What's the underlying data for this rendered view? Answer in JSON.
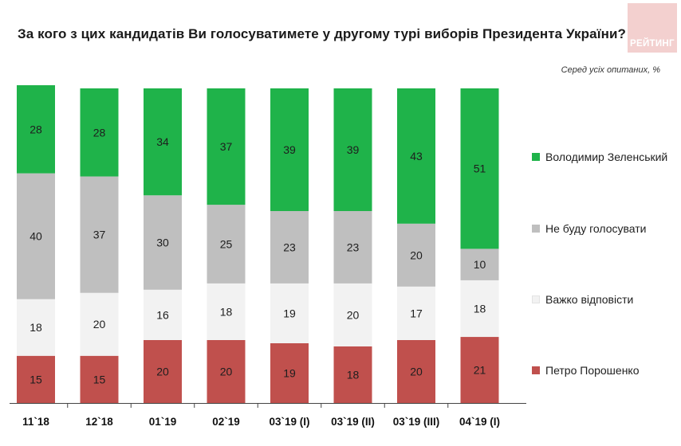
{
  "title": "За кого з цих кандидатів Ви голосуватимете у другому турі виборів Президента України?",
  "subtitle": "Серед усіх опитаних, %",
  "logo_text": "РЕЙТИНГ",
  "chart_data": {
    "type": "bar",
    "stacked": true,
    "categories": [
      "11`18",
      "12`18",
      "01`19",
      "02`19",
      "03`19 (I)",
      "03`19 (II)",
      "03`19 (III)",
      "04`19 (I)"
    ],
    "series": [
      {
        "name": "Петро Порошенко",
        "color": "#c0504d",
        "values": [
          15,
          15,
          20,
          20,
          19,
          18,
          20,
          21
        ]
      },
      {
        "name": "Важко відповісти",
        "color": "#f2f2f2",
        "values": [
          18,
          20,
          16,
          18,
          19,
          20,
          17,
          18
        ]
      },
      {
        "name": "Не буду голосувати",
        "color": "#bfbfbf",
        "values": [
          40,
          37,
          30,
          25,
          23,
          23,
          20,
          10
        ]
      },
      {
        "name": "Володимир Зеленський",
        "color": "#1fb34a",
        "values": [
          28,
          28,
          34,
          37,
          39,
          39,
          43,
          51
        ]
      }
    ],
    "legend": {
      "position": "right",
      "order": [
        "Володимир Зеленський",
        "Не буду голосувати",
        "Важко відповісти",
        "Петро Порошенко"
      ]
    },
    "ylim": [
      0,
      100
    ],
    "xlabel": "",
    "ylabel": ""
  }
}
